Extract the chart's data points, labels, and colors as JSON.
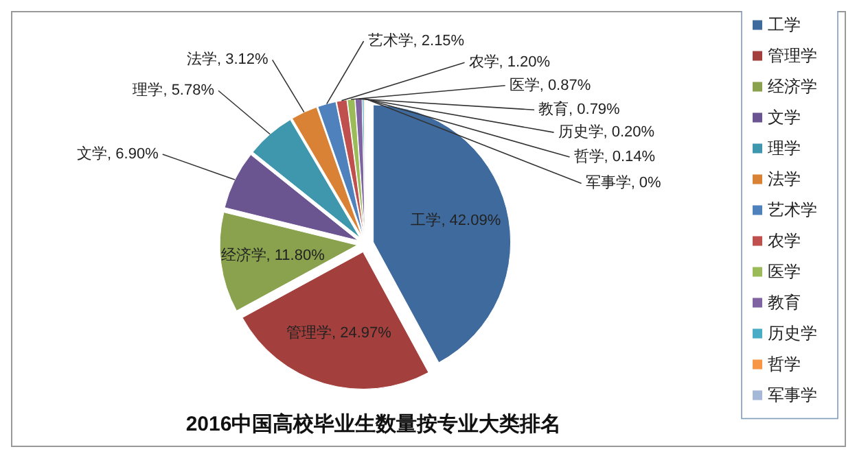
{
  "chart_data": {
    "type": "pie",
    "title": "2016中国高校毕业生数量按专业大类排名",
    "categories": [
      "工学",
      "管理学",
      "经济学",
      "文学",
      "理学",
      "法学",
      "艺术学",
      "农学",
      "医学",
      "教育",
      "历史学",
      "哲学",
      "军事学"
    ],
    "values": [
      42.09,
      24.97,
      11.8,
      6.9,
      5.78,
      3.12,
      2.15,
      1.2,
      0.87,
      0.79,
      0.2,
      0.14,
      0
    ],
    "value_labels": [
      "工学, 42.09%",
      "管理学, 24.97%",
      "经济学, 11.80%",
      "文学, 6.90%",
      "理学, 5.78%",
      "法学, 3.12%",
      "艺术学, 2.15%",
      "农学, 1.20%",
      "医学, 0.87%",
      "教育, 0.79%",
      "历史学, 0.20%",
      "哲学, 0.14%",
      "军事学, 0%"
    ],
    "colors": [
      "#3f6a9e",
      "#a33f3c",
      "#8aa24d",
      "#6b5590",
      "#3f97ad",
      "#d98236",
      "#4f81bd",
      "#c0504d",
      "#9bbb59",
      "#8064a2",
      "#4bacc6",
      "#f79646",
      "#a6b8d8"
    ],
    "legend": "right"
  }
}
